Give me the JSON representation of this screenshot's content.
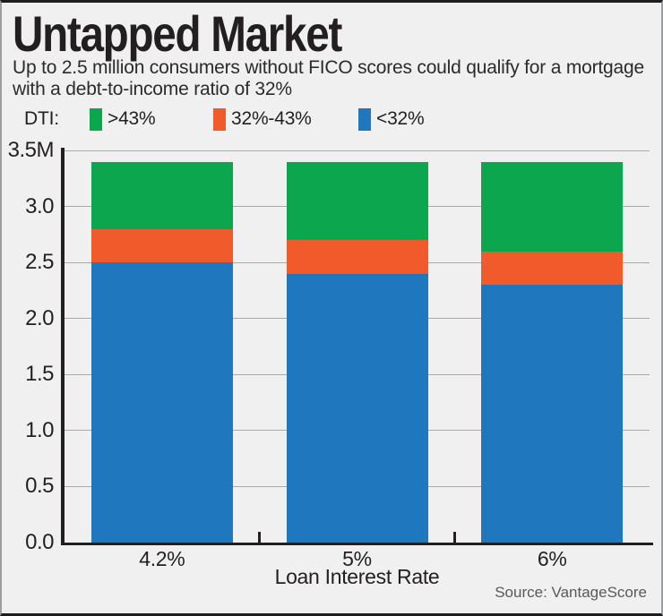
{
  "header": {
    "title": "Untapped Market",
    "subtitle": "Up to 2.5 million consumers without FICO scores could qualify for a mortgage with a debt-to-income ratio of 32%"
  },
  "legend": {
    "label": "DTI:",
    "items": [
      {
        "label": ">43%",
        "color": "#0ca64f"
      },
      {
        "label": "32%-43%",
        "color": "#f15a2b"
      },
      {
        "label": "<32%",
        "color": "#1f78bd"
      }
    ]
  },
  "chart_data": {
    "type": "bar",
    "stacked": true,
    "title": "Untapped Market",
    "subtitle": "Up to 2.5 million consumers without FICO scores could qualify for a mortgage with a debt-to-income ratio of 32%",
    "categories": [
      "4.2%",
      "5%",
      "6%"
    ],
    "series": [
      {
        "name": "<32%",
        "color": "#1f78bd",
        "values": [
          2.5,
          2.4,
          2.3
        ]
      },
      {
        "name": "32%-43%",
        "color": "#f15a2b",
        "values": [
          0.3,
          0.3,
          0.3
        ]
      },
      {
        "name": ">43%",
        "color": "#0ca64f",
        "values": [
          0.6,
          0.7,
          0.8
        ]
      }
    ],
    "totals": [
      3.4,
      3.4,
      3.4
    ],
    "xlabel": "Loan Interest Rate",
    "ylabel": "",
    "y_ticks": [
      "0.0",
      "0.5",
      "1.0",
      "1.5",
      "2.0",
      "2.5",
      "3.0",
      "3.5M"
    ],
    "ylim": [
      0,
      3.5
    ],
    "grid": true,
    "legend_position": "top"
  },
  "footer": {
    "source": "Source: VantageScore"
  }
}
